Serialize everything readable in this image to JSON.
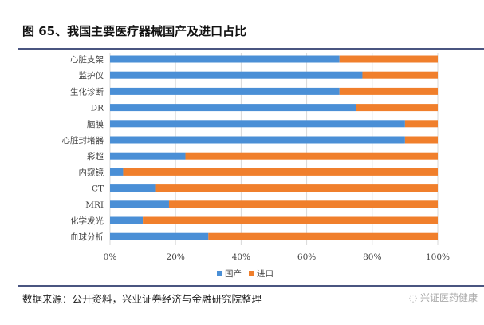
{
  "title": "图 65、我国主要医疗器械国产及进口占比",
  "footer": "数据来源：公开资料，兴业证券经济与金融研究院整理",
  "watermark": "兴证医药健康",
  "colors": {
    "domestic": "#4a8fd6",
    "import": "#f07f2c",
    "grid": "#d9d9d9"
  },
  "chart_data": {
    "type": "bar",
    "orientation": "horizontal",
    "stacked": "percent",
    "categories": [
      "心脏支架",
      "监护仪",
      "生化诊断",
      "DR",
      "脑膜",
      "心脏封堵器",
      "彩超",
      "内窥镜",
      "CT",
      "MRI",
      "化学发光",
      "血球分析"
    ],
    "series": [
      {
        "name": "国产",
        "values": [
          70,
          77,
          70,
          75,
          90,
          90,
          23,
          4,
          14,
          18,
          10,
          30
        ]
      },
      {
        "name": "进口",
        "values": [
          30,
          23,
          30,
          25,
          10,
          10,
          77,
          96,
          86,
          82,
          90,
          70
        ]
      }
    ],
    "xticks": [
      "0%",
      "20%",
      "40%",
      "60%",
      "80%",
      "100%"
    ],
    "xlim": [
      0,
      100
    ],
    "grid": true,
    "legend": "bottom"
  }
}
